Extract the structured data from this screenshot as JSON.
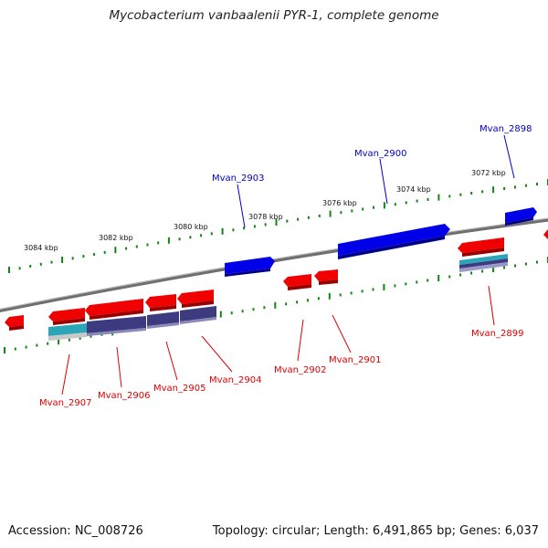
{
  "title": "Mycobacterium vanbaalenii PYR-1, complete genome",
  "footer": {
    "accession": "Accession: NC_008726",
    "topology": "Topology: circular; Length: 6,491,865 bp; Genes: 6,037"
  },
  "colors": {
    "forward_gene": "#0000ee",
    "reverse_gene": "#ee0000",
    "backbone": "#808080",
    "ticks": "#118811",
    "feature_purple": "#3d3a80",
    "feature_teal": "#2aa6b8"
  },
  "kbp_labels": [
    "3084 kbp",
    "3082 kbp",
    "3080 kbp",
    "3078 kbp",
    "3076 kbp",
    "3074 kbp",
    "3072 kbp"
  ],
  "genes_forward": [
    "Mvan_2903",
    "Mvan_2900",
    "Mvan_2898"
  ],
  "genes_reverse": [
    "Mvan_2907",
    "Mvan_2906",
    "Mvan_2905",
    "Mvan_2904",
    "Mvan_2902",
    "Mvan_2901",
    "Mvan_2899"
  ]
}
